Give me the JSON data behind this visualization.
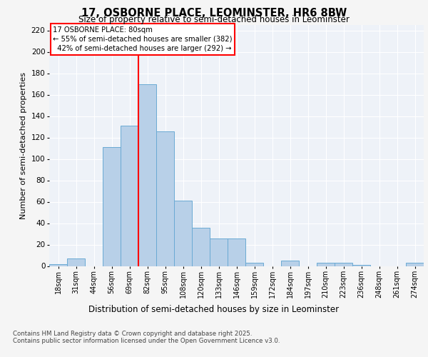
{
  "title": "17, OSBORNE PLACE, LEOMINSTER, HR6 8BW",
  "subtitle": "Size of property relative to semi-detached houses in Leominster",
  "xlabel": "Distribution of semi-detached houses by size in Leominster",
  "ylabel": "Number of semi-detached properties",
  "bar_labels": [
    "18sqm",
    "31sqm",
    "44sqm",
    "56sqm",
    "69sqm",
    "82sqm",
    "95sqm",
    "108sqm",
    "120sqm",
    "133sqm",
    "146sqm",
    "159sqm",
    "172sqm",
    "184sqm",
    "197sqm",
    "210sqm",
    "223sqm",
    "236sqm",
    "248sqm",
    "261sqm",
    "274sqm"
  ],
  "bar_values": [
    2,
    7,
    0,
    111,
    131,
    170,
    126,
    61,
    36,
    26,
    26,
    3,
    0,
    5,
    0,
    3,
    3,
    1,
    0,
    0,
    3
  ],
  "bar_color": "#b8d0e8",
  "bar_edge_color": "#6aaad4",
  "property_line_index": 5,
  "property_label": "17 OSBORNE PLACE: 80sqm",
  "smaller_pct": 55,
  "smaller_count": 382,
  "larger_pct": 42,
  "larger_count": 292,
  "ylim": [
    0,
    225
  ],
  "yticks": [
    0,
    20,
    40,
    60,
    80,
    100,
    120,
    140,
    160,
    180,
    200,
    220
  ],
  "background_color": "#eef2f8",
  "grid_color": "#ffffff",
  "fig_background": "#f5f5f5",
  "footer_line1": "Contains HM Land Registry data © Crown copyright and database right 2025.",
  "footer_line2": "Contains public sector information licensed under the Open Government Licence v3.0."
}
